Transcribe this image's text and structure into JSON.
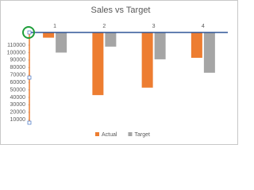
{
  "chart_data": {
    "type": "bar",
    "title": "Sales vs Target",
    "categories": [
      "1",
      "2",
      "3",
      "4"
    ],
    "series": [
      {
        "name": "Actual",
        "color": "#ed7d31",
        "values": [
          120000,
          43000,
          53000,
          93000
        ]
      },
      {
        "name": "Target",
        "color": "#a5a5a5",
        "values": [
          100000,
          108000,
          91000,
          73000
        ]
      }
    ],
    "ylim": [
      6000,
      127000
    ],
    "yticks": [
      10000,
      20000,
      30000,
      40000,
      50000,
      60000,
      70000,
      80000,
      90000,
      100000,
      110000
    ]
  }
}
